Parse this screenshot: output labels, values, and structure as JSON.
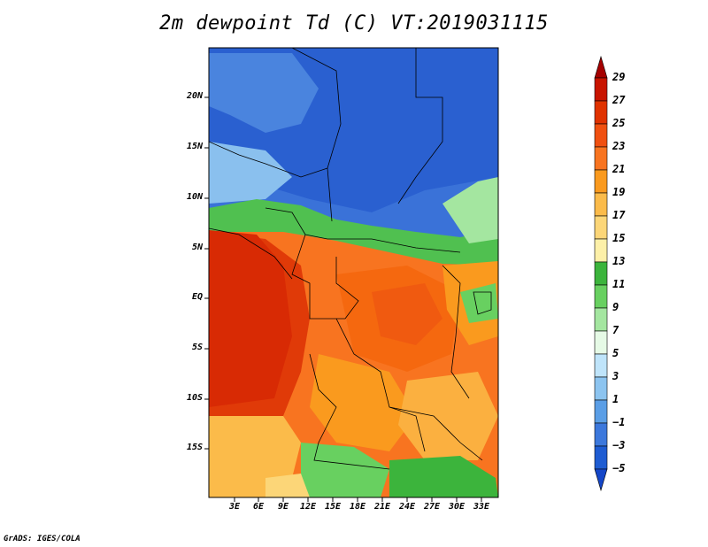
{
  "title": "2m dewpoint Td (C) VT:2019031115",
  "credit": "GrADS: IGES/COLA",
  "map": {
    "lat_labels": [
      "20N",
      "15N",
      "10N",
      "5N",
      "EQ",
      "5S",
      "10S",
      "15S"
    ],
    "lon_labels": [
      "3E",
      "6E",
      "9E",
      "12E",
      "15E",
      "18E",
      "21E",
      "24E",
      "27E",
      "30E",
      "33E"
    ]
  },
  "colorbar": {
    "labels": [
      "29",
      "27",
      "25",
      "23",
      "21",
      "19",
      "17",
      "15",
      "13",
      "11",
      "9",
      "7",
      "5",
      "3",
      "1",
      "−1",
      "−3",
      "−5"
    ],
    "colors": [
      "#a50000",
      "#c81400",
      "#e03200",
      "#f05010",
      "#f87420",
      "#fa9a1e",
      "#fbbb4a",
      "#fcd678",
      "#fdf0a8",
      "#3cb43c",
      "#68d060",
      "#a4e6a0",
      "#e6fae6",
      "#bfe4fa",
      "#8cc4f0",
      "#5a9ee6",
      "#3c78dc",
      "#1e5cd2",
      "#1446c8"
    ]
  }
}
